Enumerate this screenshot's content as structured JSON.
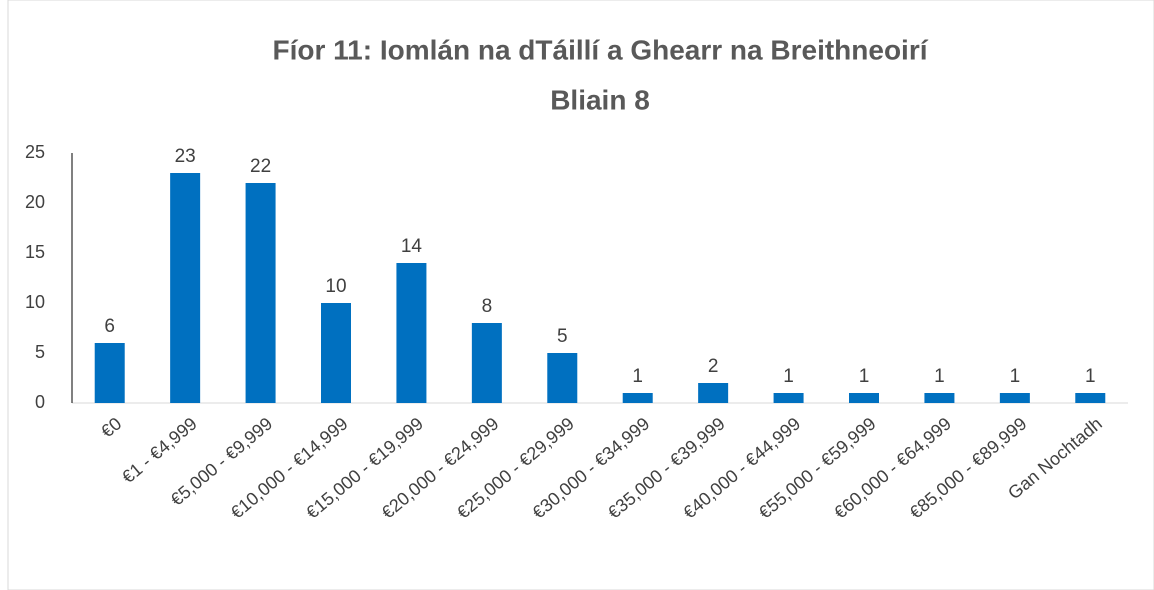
{
  "chart_data": {
    "type": "bar",
    "title": "Fíor 11: Iomlán na dTáillí a Ghearr na Breithneoirí",
    "subtitle": "Bliain 8",
    "categories": [
      "€0",
      "€1 - €4,999",
      "€5,000 - €9,999",
      "€10,000 - €14,999",
      "€15,000 - €19,999",
      "€20,000 - €24,999",
      "€25,000 - €29,999",
      "€30,000 - €34,999",
      "€35,000 - €39,999",
      "€40,000 - €44,999",
      "€55,000 - €59,999",
      "€60,000 - €64,999",
      "€85,000 - €89,999",
      "Gan Nochtadh"
    ],
    "values": [
      6,
      23,
      22,
      10,
      14,
      8,
      5,
      1,
      2,
      1,
      1,
      1,
      1,
      1
    ],
    "color": "#0070c0",
    "ylim": [
      0,
      25
    ],
    "yticks": [
      0,
      5,
      10,
      15,
      20,
      25
    ],
    "grid": false
  }
}
